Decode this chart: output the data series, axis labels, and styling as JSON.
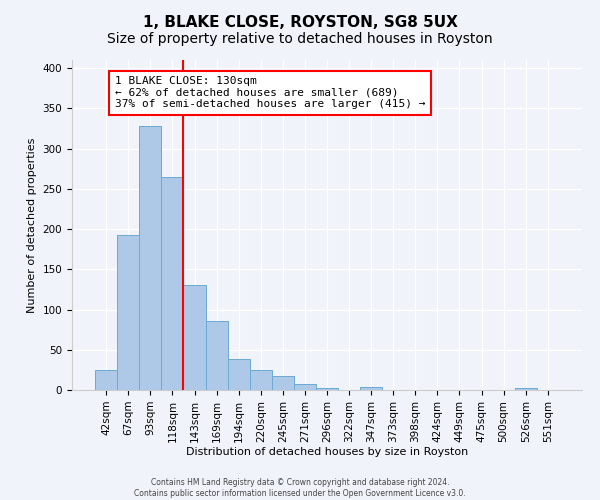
{
  "title": "1, BLAKE CLOSE, ROYSTON, SG8 5UX",
  "subtitle": "Size of property relative to detached houses in Royston",
  "xlabel": "Distribution of detached houses by size in Royston",
  "ylabel": "Number of detached properties",
  "bar_labels": [
    "42sqm",
    "67sqm",
    "93sqm",
    "118sqm",
    "143sqm",
    "169sqm",
    "194sqm",
    "220sqm",
    "245sqm",
    "271sqm",
    "296sqm",
    "322sqm",
    "347sqm",
    "373sqm",
    "398sqm",
    "424sqm",
    "449sqm",
    "475sqm",
    "500sqm",
    "526sqm",
    "551sqm"
  ],
  "bar_values": [
    25,
    193,
    328,
    265,
    130,
    86,
    38,
    25,
    17,
    8,
    2,
    0,
    4,
    0,
    0,
    0,
    0,
    0,
    0,
    3,
    0
  ],
  "bar_color": "#aec8e8",
  "bar_edge_color": "#6aaad4",
  "vline_x": 3.5,
  "vline_color": "red",
  "annotation_title": "1 BLAKE CLOSE: 130sqm",
  "annotation_line1": "← 62% of detached houses are smaller (689)",
  "annotation_line2": "37% of semi-detached houses are larger (415) →",
  "annotation_box_edgecolor": "red",
  "ylim": [
    0,
    410
  ],
  "yticks": [
    0,
    50,
    100,
    150,
    200,
    250,
    300,
    350,
    400
  ],
  "footer1": "Contains HM Land Registry data © Crown copyright and database right 2024.",
  "footer2": "Contains public sector information licensed under the Open Government Licence v3.0.",
  "bg_color": "#f0f4fa",
  "plot_bg_color": "#f0f4fa",
  "title_fontsize": 11,
  "subtitle_fontsize": 10,
  "axis_label_fontsize": 8,
  "tick_fontsize": 7.5,
  "annotation_fontsize": 8
}
